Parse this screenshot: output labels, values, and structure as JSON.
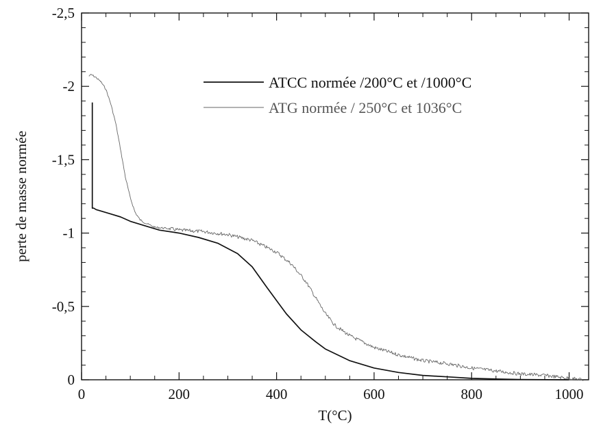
{
  "chart_data": {
    "type": "line",
    "xlabel": "T(°C)",
    "ylabel": "perte de masse normée",
    "xlim": [
      0,
      1040
    ],
    "ylim": [
      0,
      -2.5
    ],
    "y_inverted": true,
    "x_ticks": [
      0,
      200,
      400,
      600,
      800,
      1000
    ],
    "x_tick_labels": [
      "0",
      "200",
      "400",
      "600",
      "800",
      "1000"
    ],
    "y_ticks": [
      0,
      -0.5,
      -1,
      -1.5,
      -2,
      -2.5
    ],
    "y_tick_labels": [
      "0",
      "-0,5",
      "-1",
      "-1,5",
      "-2",
      "-2,5"
    ],
    "grid": false,
    "legend_position": "top-right",
    "series": [
      {
        "name": "ATCC normée /200°C et /1000°C",
        "color": "#111111",
        "style": "solid",
        "x": [
          22,
          22,
          25,
          30,
          40,
          60,
          80,
          100,
          130,
          160,
          200,
          240,
          280,
          320,
          350,
          380,
          400,
          420,
          450,
          480,
          500,
          550,
          600,
          650,
          700,
          750,
          800,
          850,
          900,
          950,
          1000
        ],
        "y": [
          -1.89,
          -1.17,
          -1.17,
          -1.16,
          -1.15,
          -1.13,
          -1.11,
          -1.08,
          -1.05,
          -1.02,
          -1.0,
          -0.97,
          -0.93,
          -0.86,
          -0.77,
          -0.63,
          -0.54,
          -0.45,
          -0.34,
          -0.26,
          -0.21,
          -0.13,
          -0.08,
          -0.05,
          -0.03,
          -0.02,
          -0.01,
          -0.005,
          -0.002,
          -0.001,
          0.0
        ]
      },
      {
        "name": "ATG normée / 250°C et 1036°C",
        "color": "#666666",
        "style": "thin-noisy",
        "x": [
          15,
          20,
          30,
          40,
          50,
          60,
          70,
          80,
          90,
          100,
          110,
          120,
          130,
          150,
          180,
          200,
          250,
          300,
          350,
          400,
          430,
          460,
          480,
          500,
          520,
          550,
          600,
          650,
          700,
          750,
          800,
          850,
          900,
          950,
          1000,
          1030
        ],
        "y": [
          -2.07,
          -2.08,
          -2.06,
          -2.03,
          -1.98,
          -1.88,
          -1.75,
          -1.57,
          -1.38,
          -1.24,
          -1.14,
          -1.09,
          -1.07,
          -1.04,
          -1.03,
          -1.02,
          -1.01,
          -0.99,
          -0.95,
          -0.87,
          -0.79,
          -0.67,
          -0.56,
          -0.45,
          -0.37,
          -0.3,
          -0.22,
          -0.17,
          -0.13,
          -0.11,
          -0.08,
          -0.06,
          -0.04,
          -0.03,
          -0.01,
          0.0
        ]
      }
    ]
  }
}
